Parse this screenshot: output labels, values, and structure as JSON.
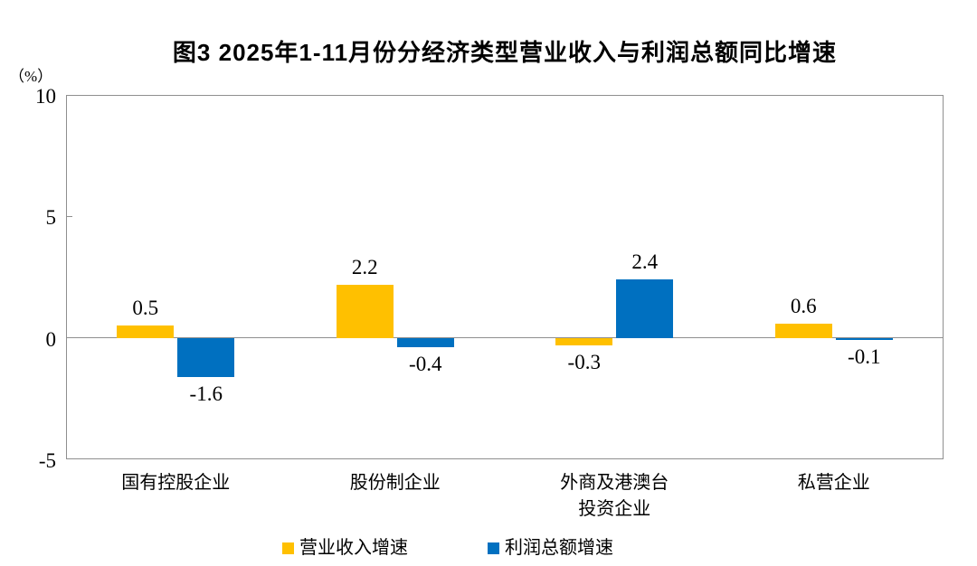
{
  "chart_data": {
    "type": "bar",
    "title": "图3 2025年1-11月份分经济类型营业收入与利润总额同比增速",
    "ylabel": "（%）",
    "ylim": [
      -5,
      10
    ],
    "yticks": [
      10,
      5,
      0,
      -5
    ],
    "grid": false,
    "legend_position": "bottom",
    "categories": [
      "国有控股企业",
      "股份制企业",
      "外商及港澳台\n投资企业",
      "私营企业"
    ],
    "series": [
      {
        "id": "revenue",
        "name": "营业收入增速",
        "color": "#FFC000",
        "values": [
          0.5,
          2.2,
          -0.3,
          0.6
        ]
      },
      {
        "id": "profit",
        "name": "利润总额增速",
        "color": "#0070C0",
        "values": [
          -1.6,
          -0.4,
          2.4,
          -0.1
        ]
      }
    ]
  }
}
